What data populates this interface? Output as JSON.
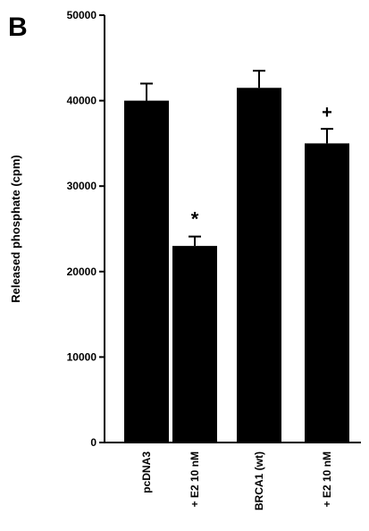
{
  "panel_label": "B",
  "chart_data": {
    "type": "bar",
    "categories": [
      "pcDNA3",
      "+ E2 10 nM",
      "BRCA1 (wt)",
      "+ E2 10 nM"
    ],
    "values": [
      40000,
      23000,
      41500,
      35000
    ],
    "errors": [
      2000,
      1100,
      2000,
      1700
    ],
    "annotations": [
      "",
      "*",
      "",
      "+"
    ],
    "ylabel": "Released phosphate (cpm)",
    "xlabel": "",
    "ylim": [
      0,
      50000
    ],
    "yticks": [
      0,
      10000,
      20000,
      30000,
      40000,
      50000
    ],
    "bar_color": "#000000",
    "grid": false,
    "legend": "none"
  }
}
